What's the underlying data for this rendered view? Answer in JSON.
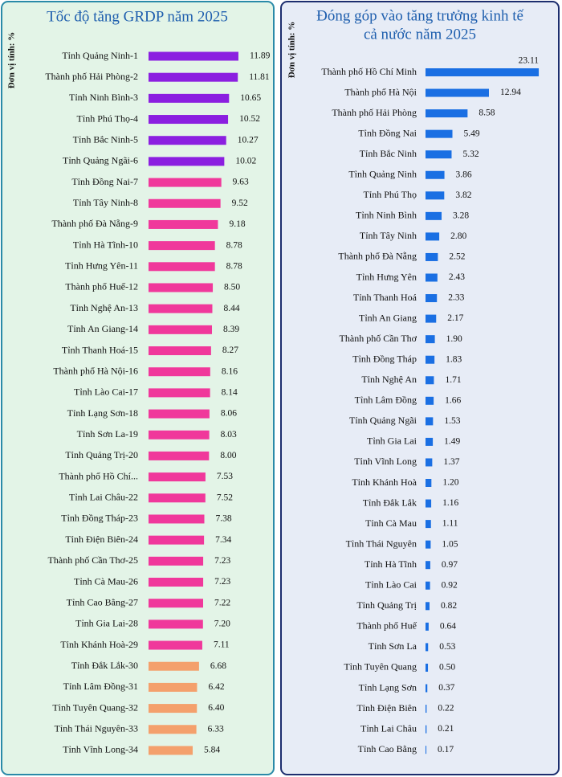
{
  "chart_data": [
    {
      "type": "bar",
      "orientation": "horizontal",
      "title": "Tốc độ tăng GRDP năm 2025",
      "axis_label": "Đơn vị tính: %",
      "categories": [
        "Tỉnh Quảng Ninh-1",
        "Thành phố Hải Phòng-2",
        "Tỉnh Ninh Bình-3",
        "Tỉnh Phú Thọ-4",
        "Tỉnh Bắc Ninh-5",
        "Tỉnh Quảng Ngãi-6",
        "Tỉnh Đồng Nai-7",
        "Tỉnh Tây Ninh-8",
        "Thành phố Đà Nẵng-9",
        "Tỉnh Hà Tĩnh-10",
        "Tỉnh Hưng Yên-11",
        "Thành phố Huế-12",
        "Tỉnh Nghệ An-13",
        "Tỉnh An Giang-14",
        "Tỉnh Thanh Hoá-15",
        "Thành phố Hà Nội-16",
        "Tỉnh Lào Cai-17",
        "Tỉnh Lạng Sơn-18",
        "Tỉnh Sơn La-19",
        "Tỉnh Quảng Trị-20",
        "Thành phố Hồ Chí...",
        "Tỉnh Lai Châu-22",
        "Tỉnh Đồng Tháp-23",
        "Tỉnh Điện Biên-24",
        "Thành phố Cần Thơ-25",
        "Tỉnh Cà Mau-26",
        "Tỉnh Cao Bằng-27",
        "Tỉnh Gia Lai-28",
        "Tỉnh Khánh Hoà-29",
        "Tỉnh Đắk Lắk-30",
        "Tỉnh Lâm Đồng-31",
        "Tỉnh Tuyên Quang-32",
        "Tỉnh Thái Nguyên-33",
        "Tỉnh Vĩnh Long-34"
      ],
      "values": [
        11.89,
        11.81,
        10.65,
        10.52,
        10.27,
        10.02,
        9.63,
        9.52,
        9.18,
        8.78,
        8.78,
        8.5,
        8.44,
        8.39,
        8.27,
        8.16,
        8.14,
        8.06,
        8.03,
        8.0,
        7.53,
        7.52,
        7.38,
        7.34,
        7.23,
        7.23,
        7.22,
        7.2,
        7.11,
        6.68,
        6.42,
        6.4,
        6.33,
        5.84
      ],
      "value_labels": [
        "11.89",
        "11.81",
        "10.65",
        "10.52",
        "10.27",
        "10.02",
        "9.63",
        "9.52",
        "9.18",
        "8.78",
        "8.78",
        "8.50",
        "8.44",
        "8.39",
        "8.27",
        "8.16",
        "8.14",
        "8.06",
        "8.03",
        "8.00",
        "7.53",
        "7.52",
        "7.38",
        "7.34",
        "7.23",
        "7.23",
        "7.22",
        "7.20",
        "7.11",
        "6.68",
        "6.42",
        "6.40",
        "6.33",
        "5.84"
      ],
      "colors": [
        "#8b1fe0",
        "#8b1fe0",
        "#8b1fe0",
        "#8b1fe0",
        "#8b1fe0",
        "#8b1fe0",
        "#f0389b",
        "#f0389b",
        "#f0389b",
        "#f0389b",
        "#f0389b",
        "#f0389b",
        "#f0389b",
        "#f0389b",
        "#f0389b",
        "#f0389b",
        "#f0389b",
        "#f0389b",
        "#f0389b",
        "#f0389b",
        "#f0389b",
        "#f0389b",
        "#f0389b",
        "#f0389b",
        "#f0389b",
        "#f0389b",
        "#f0389b",
        "#f0389b",
        "#f0389b",
        "#f4a06c",
        "#f4a06c",
        "#f4a06c",
        "#f4a06c",
        "#f4a06c"
      ],
      "xlim": [
        0,
        12
      ]
    },
    {
      "type": "bar",
      "orientation": "horizontal",
      "title": [
        "Đóng góp vào tăng trưởng kinh tế",
        "cả nước năm 2025"
      ],
      "axis_label": "Đơn vị tính: %",
      "categories": [
        "Thành phố Hồ Chí Minh",
        "Thành phố Hà Nội",
        "Thành phố Hải Phòng",
        "Tỉnh Đồng Nai",
        "Tỉnh Bắc Ninh",
        "Tỉnh Quảng Ninh",
        "Tỉnh Phú Thọ",
        "Tỉnh Ninh Bình",
        "Tỉnh Tây Ninh",
        "Thành phố Đà Nẵng",
        "Tỉnh Hưng Yên",
        "Tỉnh Thanh Hoá",
        "Tỉnh An Giang",
        "Thành phố Cần Thơ",
        "Tỉnh Đồng Tháp",
        "Tỉnh Nghệ An",
        "Tỉnh Lâm Đồng",
        "Tỉnh Quảng Ngãi",
        "Tỉnh Gia Lai",
        "Tỉnh Vĩnh Long",
        "Tỉnh Khánh Hoà",
        "Tỉnh Đắk Lắk",
        "Tỉnh Cà Mau",
        "Tỉnh Thái Nguyên",
        "Tỉnh Hà Tĩnh",
        "Tỉnh Lào Cai",
        "Tỉnh Quảng Trị",
        "Thành phố Huế",
        "Tỉnh Sơn La",
        "Tỉnh Tuyên Quang",
        "Tỉnh Lạng Sơn",
        "Tỉnh Điện Biên",
        "Tỉnh Lai Châu",
        "Tỉnh Cao Bằng"
      ],
      "values": [
        23.11,
        12.94,
        8.58,
        5.49,
        5.32,
        3.86,
        3.82,
        3.28,
        2.8,
        2.52,
        2.43,
        2.33,
        2.17,
        1.9,
        1.83,
        1.71,
        1.66,
        1.53,
        1.49,
        1.37,
        1.2,
        1.16,
        1.11,
        1.05,
        0.97,
        0.92,
        0.82,
        0.64,
        0.53,
        0.5,
        0.37,
        0.22,
        0.21,
        0.17
      ],
      "value_labels": [
        "23.11",
        "12.94",
        "8.58",
        "5.49",
        "5.32",
        "3.86",
        "3.82",
        "3.28",
        "2.80",
        "2.52",
        "2.43",
        "2.33",
        "2.17",
        "1.90",
        "1.83",
        "1.71",
        "1.66",
        "1.53",
        "1.49",
        "1.37",
        "1.20",
        "1.16",
        "1.11",
        "1.05",
        "0.97",
        "0.92",
        "0.82",
        "0.64",
        "0.53",
        "0.50",
        "0.37",
        "0.22",
        "0.21",
        "0.17"
      ],
      "color": "#1a6fe3",
      "xlim": [
        0,
        24
      ]
    }
  ]
}
